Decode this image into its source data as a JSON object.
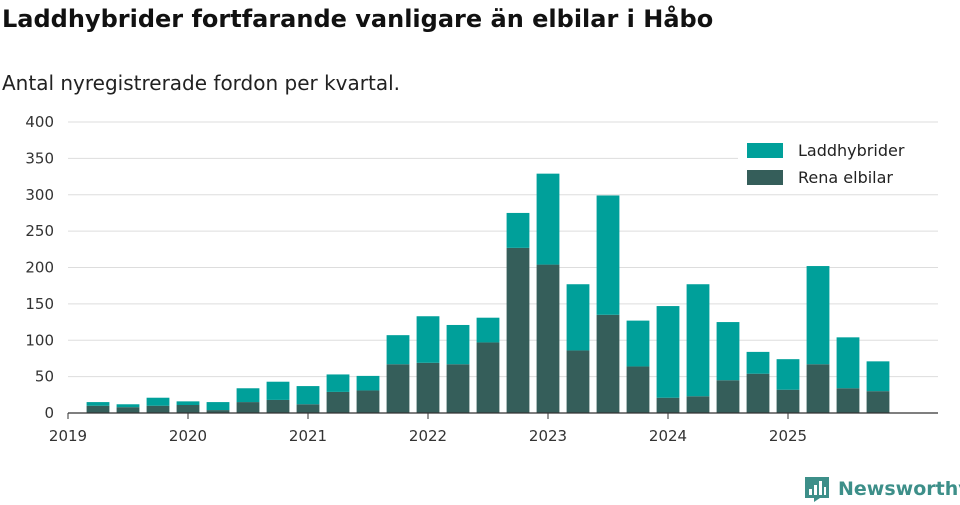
{
  "chart_data": {
    "type": "bar",
    "stacked": true,
    "title": "Laddhybrider fortfarande vanligare än elbilar i Håbo",
    "subtitle": "Antal nyregistrerade fordon per kvartal.",
    "xlabel": "",
    "ylabel": "",
    "ylim": [
      0,
      400
    ],
    "yticks": [
      0,
      50,
      100,
      150,
      200,
      250,
      300,
      350,
      400
    ],
    "x_range": [
      0,
      29
    ],
    "categories": [
      "2019 Q2",
      "2019 Q3",
      "2019 Q4",
      "2020 Q1",
      "2020 Q2",
      "2020 Q3",
      "2020 Q4",
      "2021 Q1",
      "2021 Q2",
      "2021 Q3",
      "2021 Q4",
      "2022 Q1",
      "2022 Q2",
      "2022 Q3",
      "2022 Q4",
      "2023 Q1",
      "2023 Q2",
      "2023 Q3",
      "2023 Q4",
      "2024 Q1",
      "2024 Q2",
      "2024 Q3",
      "2024 Q4",
      "2025 Q1",
      "2025 Q2",
      "2025 Q3",
      "2025 Q4"
    ],
    "x_positions": [
      1,
      2,
      3,
      4,
      5,
      6,
      7,
      8,
      9,
      10,
      11,
      12,
      13,
      14,
      15,
      16,
      17,
      18,
      19,
      20,
      21,
      22,
      23,
      24,
      25,
      26,
      27
    ],
    "xticks": [
      {
        "label": "2019",
        "pos": 0
      },
      {
        "label": "2020",
        "pos": 4
      },
      {
        "label": "2021",
        "pos": 8
      },
      {
        "label": "2022",
        "pos": 12
      },
      {
        "label": "2023",
        "pos": 16
      },
      {
        "label": "2024",
        "pos": 20
      },
      {
        "label": "2025",
        "pos": 24
      }
    ],
    "series": [
      {
        "name": "Rena elbilar",
        "color": "#355e5a",
        "values": [
          10,
          8,
          10,
          11,
          4,
          15,
          18,
          12,
          29,
          31,
          67,
          69,
          67,
          97,
          227,
          204,
          86,
          135,
          64,
          21,
          23,
          45,
          54,
          32,
          67,
          34,
          30
        ]
      },
      {
        "name": "Laddhybrider",
        "color": "#00a09a",
        "values": [
          5,
          4,
          11,
          5,
          11,
          19,
          25,
          25,
          24,
          20,
          40,
          64,
          54,
          34,
          48,
          125,
          91,
          164,
          63,
          126,
          154,
          80,
          30,
          42,
          135,
          70,
          41
        ]
      }
    ],
    "legend": {
      "position": "top-right",
      "entries": [
        "Laddhybrider",
        "Rena elbilar"
      ]
    },
    "grid": true
  },
  "branding": {
    "name": "Newsworthy",
    "color": "#3d8f89"
  }
}
